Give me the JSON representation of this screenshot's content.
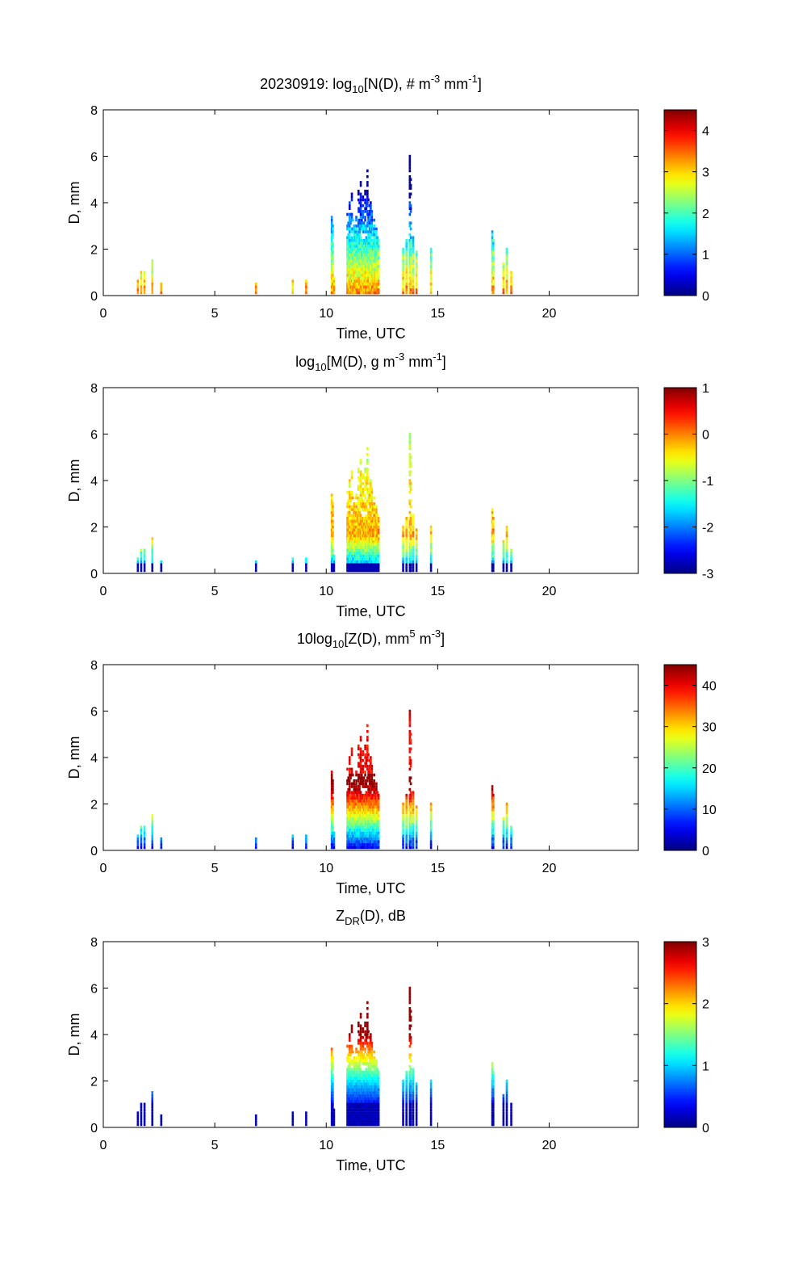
{
  "colors": {
    "background": "#ffffff",
    "axis": "#000000",
    "colormap": "jet",
    "colormap_stops": [
      "#00008f",
      "#0000ff",
      "#00ffff",
      "#ffff00",
      "#ff0000",
      "#800000"
    ]
  },
  "chart_data": [
    {
      "type": "heatmap",
      "title_parts": [
        {
          "text": "20230919: log"
        },
        {
          "text": "10",
          "style": "sub"
        },
        {
          "text": "[N(D), # m"
        },
        {
          "text": "-3",
          "style": "sup"
        },
        {
          "text": " mm"
        },
        {
          "text": "-1",
          "style": "sup"
        },
        {
          "text": "]"
        }
      ],
      "xlabel": "Time, UTC",
      "ylabel": "D, mm",
      "xlim": [
        0,
        24
      ],
      "ylim": [
        0,
        8
      ],
      "xticks": [
        0,
        5,
        10,
        15,
        20
      ],
      "yticks": [
        0,
        2,
        4,
        6,
        8
      ],
      "colorbar": {
        "range": [
          0,
          4.5
        ],
        "ticks": [
          0,
          1,
          2,
          3,
          4
        ]
      },
      "grid": false,
      "profile": "N"
    },
    {
      "type": "heatmap",
      "title_parts": [
        {
          "text": "log"
        },
        {
          "text": "10",
          "style": "sub"
        },
        {
          "text": "[M(D), g m"
        },
        {
          "text": "-3",
          "style": "sup"
        },
        {
          "text": " mm"
        },
        {
          "text": "-1",
          "style": "sup"
        },
        {
          "text": "]"
        }
      ],
      "xlabel": "Time, UTC",
      "ylabel": "D, mm",
      "xlim": [
        0,
        24
      ],
      "ylim": [
        0,
        8
      ],
      "xticks": [
        0,
        5,
        10,
        15,
        20
      ],
      "yticks": [
        0,
        2,
        4,
        6,
        8
      ],
      "colorbar": {
        "range": [
          -3,
          1
        ],
        "ticks": [
          -3,
          -2,
          -1,
          0,
          1
        ]
      },
      "grid": false,
      "profile": "M"
    },
    {
      "type": "heatmap",
      "title_parts": [
        {
          "text": "10log"
        },
        {
          "text": "10",
          "style": "sub"
        },
        {
          "text": "[Z(D),  mm"
        },
        {
          "text": "5",
          "style": "sup"
        },
        {
          "text": " m"
        },
        {
          "text": "-3",
          "style": "sup"
        },
        {
          "text": "]"
        }
      ],
      "xlabel": "Time, UTC",
      "ylabel": "D, mm",
      "xlim": [
        0,
        24
      ],
      "ylim": [
        0,
        8
      ],
      "xticks": [
        0,
        5,
        10,
        15,
        20
      ],
      "yticks": [
        0,
        2,
        4,
        6,
        8
      ],
      "colorbar": {
        "range": [
          0,
          45
        ],
        "ticks": [
          0,
          10,
          20,
          30,
          40
        ]
      },
      "grid": false,
      "profile": "Z"
    },
    {
      "type": "heatmap",
      "title_parts": [
        {
          "text": "Z"
        },
        {
          "text": "DR",
          "style": "sub"
        },
        {
          "text": "(D), dB"
        }
      ],
      "xlabel": "Time, UTC",
      "ylabel": "D, mm",
      "xlim": [
        0,
        24
      ],
      "ylim": [
        0,
        8
      ],
      "xticks": [
        0,
        5,
        10,
        15,
        20
      ],
      "yticks": [
        0,
        2,
        4,
        6,
        8
      ],
      "colorbar": {
        "range": [
          0,
          3
        ],
        "ticks": [
          0,
          1,
          2,
          3
        ]
      },
      "grid": false,
      "profile": "ZDR"
    }
  ],
  "events": [
    {
      "t": 1.55,
      "dmax": 0.6
    },
    {
      "t": 1.7,
      "dmax": 0.9
    },
    {
      "t": 1.85,
      "dmax": 0.9
    },
    {
      "t": 2.2,
      "dmax": 1.5
    },
    {
      "t": 2.6,
      "dmax": 0.5
    },
    {
      "t": 6.85,
      "dmax": 0.5
    },
    {
      "t": 8.5,
      "dmax": 0.6
    },
    {
      "t": 9.1,
      "dmax": 0.6
    },
    {
      "t": 10.25,
      "dmax": 3.3
    },
    {
      "t": 10.35,
      "dmax": 0.7
    },
    {
      "t": 10.95,
      "dmax": 3.5
    },
    {
      "t": 11.05,
      "dmax": 4.0
    },
    {
      "t": 11.15,
      "dmax": 4.3
    },
    {
      "t": 11.25,
      "dmax": 3.0
    },
    {
      "t": 11.35,
      "dmax": 3.5
    },
    {
      "t": 11.45,
      "dmax": 4.5
    },
    {
      "t": 11.55,
      "dmax": 5.0
    },
    {
      "t": 11.65,
      "dmax": 4.2
    },
    {
      "t": 11.75,
      "dmax": 4.5
    },
    {
      "t": 11.85,
      "dmax": 5.3
    },
    {
      "t": 11.95,
      "dmax": 4.6
    },
    {
      "t": 12.05,
      "dmax": 3.8
    },
    {
      "t": 12.15,
      "dmax": 3.2
    },
    {
      "t": 12.25,
      "dmax": 2.8
    },
    {
      "t": 12.35,
      "dmax": 2.3
    },
    {
      "t": 13.45,
      "dmax": 2.0
    },
    {
      "t": 13.6,
      "dmax": 2.3
    },
    {
      "t": 13.75,
      "dmax": 6.0
    },
    {
      "t": 13.9,
      "dmax": 2.4
    },
    {
      "t": 14.05,
      "dmax": 1.8
    },
    {
      "t": 14.7,
      "dmax": 2.0
    },
    {
      "t": 17.45,
      "dmax": 2.7
    },
    {
      "t": 17.95,
      "dmax": 1.3
    },
    {
      "t": 18.1,
      "dmax": 1.9
    },
    {
      "t": 18.3,
      "dmax": 1.0
    }
  ]
}
